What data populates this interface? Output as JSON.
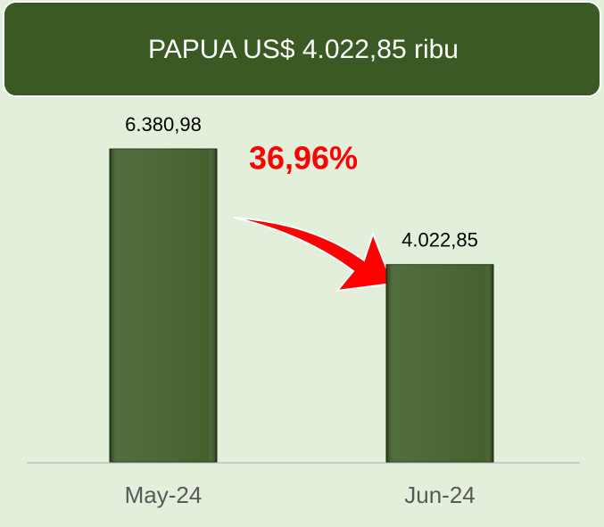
{
  "chart_data": {
    "type": "bar",
    "title": "PAPUA  US$ 4.022,85 ribu",
    "categories": [
      "May-24",
      "Jun-24"
    ],
    "values": [
      6380.98,
      4022.85
    ],
    "value_labels": [
      "6.380,98",
      "4.022,85"
    ],
    "color": "#3b5a23",
    "annotation": "36,96%",
    "ylim": [
      0,
      7000
    ]
  }
}
